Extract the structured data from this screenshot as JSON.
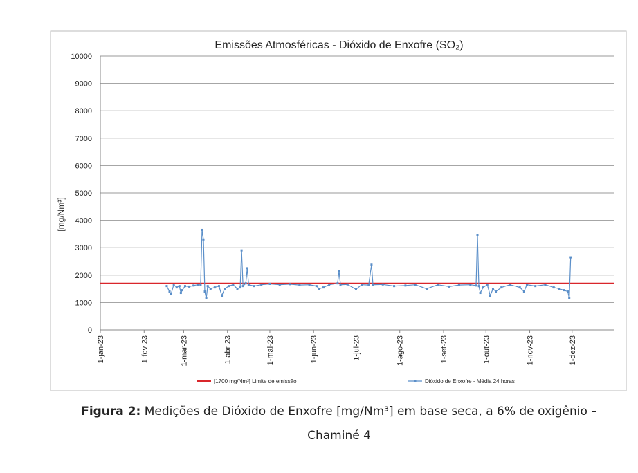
{
  "chart_data": {
    "type": "line",
    "title": "Emissões Atmosféricas - Dióxido de Enxofre (SO₂)",
    "y_label": "[mg/Nm³]",
    "xlim": [
      "2023-01-01",
      "2023-12-31"
    ],
    "xticks": [
      {
        "value": "2023-01-01",
        "label": "1-jan-23"
      },
      {
        "value": "2023-02-01",
        "label": "1-fev-23"
      },
      {
        "value": "2023-03-01",
        "label": "1-mar-23"
      },
      {
        "value": "2023-04-01",
        "label": "1-abr-23"
      },
      {
        "value": "2023-05-01",
        "label": "1-mai-23"
      },
      {
        "value": "2023-06-01",
        "label": "1-jun-23"
      },
      {
        "value": "2023-07-01",
        "label": "1-jul-23"
      },
      {
        "value": "2023-08-01",
        "label": "1-ago-23"
      },
      {
        "value": "2023-09-01",
        "label": "1-set-23"
      },
      {
        "value": "2023-10-01",
        "label": "1-out-23"
      },
      {
        "value": "2023-11-01",
        "label": "1-nov-23"
      },
      {
        "value": "2023-12-01",
        "label": "1-dez-23"
      }
    ],
    "ylim": [
      0,
      10000
    ],
    "yticks": [
      0,
      1000,
      2000,
      3000,
      4000,
      5000,
      6000,
      7000,
      8000,
      9000,
      10000
    ],
    "grid": true,
    "series": [
      {
        "name": "[1700 mg/Nm³] Limite de emissão",
        "color": "#d9262b",
        "x": [
          "2023-01-01",
          "2023-12-31"
        ],
        "values": [
          1700,
          1700
        ]
      },
      {
        "name": "Dióxido de Enxofre - Média 24 horas",
        "color": "#5b8fc9",
        "x": [
          "2023-02-17",
          "2023-02-19",
          "2023-02-20",
          "2023-02-22",
          "2023-02-24",
          "2023-02-26",
          "2023-02-27",
          "2023-02-28",
          "2023-03-02",
          "2023-03-05",
          "2023-03-08",
          "2023-03-11",
          "2023-03-13",
          "2023-03-14",
          "2023-03-15",
          "2023-03-16",
          "2023-03-17",
          "2023-03-18",
          "2023-03-20",
          "2023-03-23",
          "2023-03-26",
          "2023-03-28",
          "2023-03-30",
          "2023-04-02",
          "2023-04-05",
          "2023-04-08",
          "2023-04-10",
          "2023-04-11",
          "2023-04-12",
          "2023-04-14",
          "2023-04-15",
          "2023-04-16",
          "2023-04-20",
          "2023-04-25",
          "2023-05-01",
          "2023-05-08",
          "2023-05-15",
          "2023-05-22",
          "2023-05-29",
          "2023-06-03",
          "2023-06-05",
          "2023-06-08",
          "2023-06-12",
          "2023-06-18",
          "2023-06-19",
          "2023-06-20",
          "2023-06-25",
          "2023-07-01",
          "2023-07-05",
          "2023-07-10",
          "2023-07-12",
          "2023-07-13",
          "2023-07-20",
          "2023-07-28",
          "2023-08-05",
          "2023-08-12",
          "2023-08-20",
          "2023-08-28",
          "2023-09-05",
          "2023-09-12",
          "2023-09-20",
          "2023-09-24",
          "2023-09-25",
          "2023-09-26",
          "2023-09-27",
          "2023-09-29",
          "2023-10-02",
          "2023-10-04",
          "2023-10-06",
          "2023-10-08",
          "2023-10-12",
          "2023-10-18",
          "2023-10-25",
          "2023-10-28",
          "2023-10-30",
          "2023-11-05",
          "2023-11-12",
          "2023-11-18",
          "2023-11-22",
          "2023-11-25",
          "2023-11-28",
          "2023-11-29",
          "2023-11-30"
        ],
        "values": [
          1600,
          1400,
          1300,
          1650,
          1550,
          1600,
          1350,
          1450,
          1600,
          1580,
          1620,
          1650,
          1640,
          3650,
          3300,
          1400,
          1150,
          1600,
          1500,
          1550,
          1600,
          1250,
          1500,
          1600,
          1650,
          1500,
          1550,
          2900,
          1600,
          1700,
          2250,
          1650,
          1600,
          1650,
          1680,
          1650,
          1670,
          1640,
          1650,
          1600,
          1500,
          1550,
          1650,
          1700,
          2150,
          1650,
          1660,
          1480,
          1650,
          1640,
          2380,
          1650,
          1660,
          1600,
          1620,
          1650,
          1500,
          1650,
          1580,
          1640,
          1650,
          1620,
          3450,
          1600,
          1350,
          1550,
          1650,
          1250,
          1500,
          1400,
          1550,
          1650,
          1550,
          1400,
          1650,
          1600,
          1650,
          1550,
          1500,
          1450,
          1400,
          1150,
          2650
        ]
      }
    ]
  },
  "caption": {
    "label": "Figura 2:",
    "text": "Medições de Dióxido de Enxofre [mg/Nm³] em base seca, a 6% de oxigênio – Chaminé 4"
  }
}
